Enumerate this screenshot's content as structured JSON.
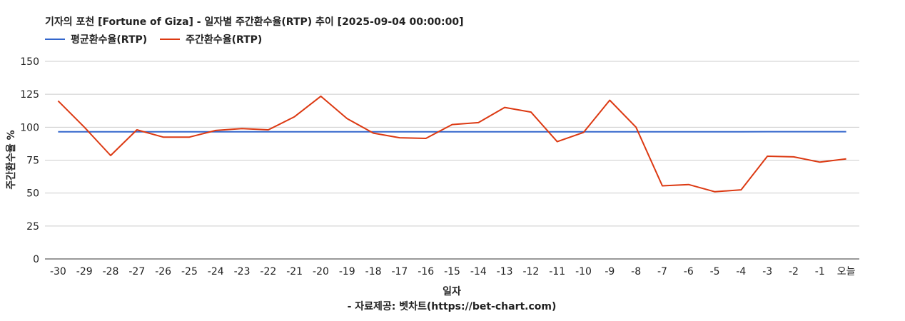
{
  "chart_data": {
    "type": "line",
    "title": "기자의 포천 [Fortune of Giza] - 일자별 주간환수율(RTP) 추이 [2025-09-04 00:00:00]",
    "xlabel": "일자",
    "ylabel": "주간환수율 %",
    "source": "- 자료제공: 벳차트(https://bet-chart.com)",
    "legend_position": "top-left",
    "grid": true,
    "ylim": [
      0,
      150
    ],
    "yticks": [
      0,
      25,
      50,
      75,
      100,
      125,
      150
    ],
    "categories": [
      "-30",
      "-29",
      "-28",
      "-27",
      "-26",
      "-25",
      "-24",
      "-23",
      "-22",
      "-21",
      "-20",
      "-19",
      "-18",
      "-17",
      "-16",
      "-15",
      "-14",
      "-13",
      "-12",
      "-11",
      "-10",
      "-9",
      "-8",
      "-7",
      "-6",
      "-5",
      "-4",
      "-3",
      "-2",
      "-1",
      "오늘"
    ],
    "series": [
      {
        "name": "평균환수율(RTP)",
        "color": "#3366cc",
        "values": [
          96.5,
          96.5,
          96.5,
          96.5,
          96.5,
          96.5,
          96.5,
          96.5,
          96.5,
          96.5,
          96.5,
          96.5,
          96.5,
          96.5,
          96.5,
          96.5,
          96.5,
          96.5,
          96.5,
          96.5,
          96.5,
          96.5,
          96.5,
          96.5,
          96.5,
          96.5,
          96.5,
          96.6,
          96.6,
          96.6,
          96.6
        ]
      },
      {
        "name": "주간환수율(RTP)",
        "color": "#dc3912",
        "values": [
          120,
          100,
          78.5,
          98,
          92.5,
          92.5,
          97.5,
          99,
          98,
          108,
          123.5,
          106.5,
          95.5,
          92,
          91.5,
          102,
          103.5,
          115,
          111.5,
          89,
          96,
          120.5,
          100,
          55.5,
          56.5,
          51,
          52.5,
          78,
          77.5,
          73.5,
          76
        ]
      }
    ]
  }
}
